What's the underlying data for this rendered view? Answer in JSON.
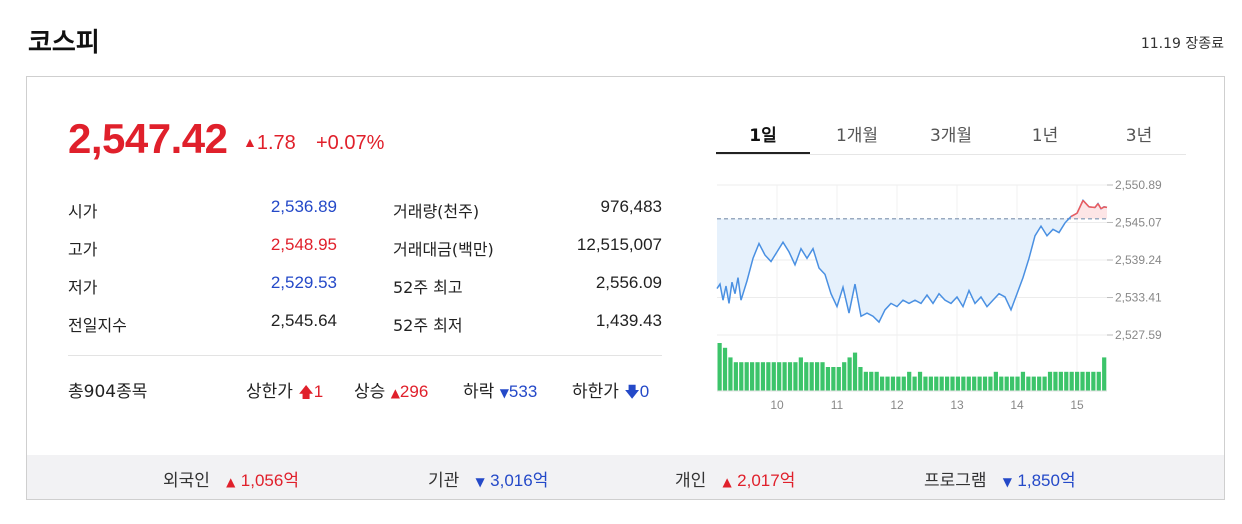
{
  "header": {
    "title": "코스피",
    "status": "11.19 장종료"
  },
  "quote": {
    "price": "2,547.42",
    "change": "1.78",
    "rate": "+0.07%"
  },
  "stats": [
    {
      "label": "시가",
      "value": "2,536.89",
      "tone": "blue"
    },
    {
      "label": "고가",
      "value": "2,548.95",
      "tone": "red"
    },
    {
      "label": "저가",
      "value": "2,529.53",
      "tone": "blue"
    },
    {
      "label": "전일지수",
      "value": "2,545.64",
      "tone": "dark"
    }
  ],
  "stats2": [
    {
      "label": "거래량(천주)",
      "value": "976,483"
    },
    {
      "label": "거래대금(백만)",
      "value": "12,515,007"
    },
    {
      "label": "52주 최고",
      "value": "2,556.09"
    },
    {
      "label": "52주 최저",
      "value": "1,439.43"
    }
  ],
  "breadth": {
    "total_label": "총904종목",
    "upper_label": "상한가",
    "upper_value": "1",
    "up_label": "상승",
    "up_value": "296",
    "down_label": "하락",
    "down_value": "533",
    "lower_label": "하한가",
    "lower_value": "0"
  },
  "tabs": [
    "1일",
    "1개월",
    "3개월",
    "1년",
    "3년"
  ],
  "investors": [
    {
      "label": "외국인",
      "direction": "up",
      "value": "1,056",
      "unit": "억"
    },
    {
      "label": "기관",
      "direction": "down",
      "value": "3,016",
      "unit": "억"
    },
    {
      "label": "개인",
      "direction": "up",
      "value": "2,017",
      "unit": "억"
    },
    {
      "label": "프로그램",
      "direction": "down",
      "value": "1,850",
      "unit": "억"
    }
  ],
  "colors": {
    "up": "#e0202b",
    "down": "#2449c8",
    "line": "#4a90e2",
    "fill": "#e6f1fc",
    "volume": "#3cc46a"
  },
  "chart_data": {
    "type": "line",
    "yticks": [
      "2,550.89",
      "2,545.07",
      "2,539.24",
      "2,533.41",
      "2,527.59"
    ],
    "ylim": [
      2527.59,
      2550.89
    ],
    "xticks": [
      "10",
      "11",
      "12",
      "13",
      "14",
      "15"
    ],
    "xlim": [
      9,
      15.5
    ],
    "prev_close": 2545.64,
    "x": [
      9.0,
      9.05,
      9.1,
      9.15,
      9.2,
      9.25,
      9.3,
      9.35,
      9.4,
      9.5,
      9.6,
      9.7,
      9.8,
      9.9,
      10.0,
      10.1,
      10.2,
      10.3,
      10.4,
      10.5,
      10.6,
      10.7,
      10.8,
      10.9,
      11.0,
      11.1,
      11.2,
      11.3,
      11.4,
      11.5,
      11.6,
      11.7,
      11.8,
      11.9,
      12.0,
      12.1,
      12.2,
      12.3,
      12.4,
      12.5,
      12.6,
      12.7,
      12.8,
      12.9,
      13.0,
      13.1,
      13.2,
      13.3,
      13.4,
      13.5,
      13.6,
      13.7,
      13.8,
      13.9,
      14.0,
      14.1,
      14.2,
      14.3,
      14.4,
      14.5,
      14.6,
      14.7,
      14.8,
      14.9,
      15.0,
      15.1,
      15.2,
      15.3,
      15.35,
      15.4,
      15.45,
      15.5
    ],
    "y": [
      2534.8,
      2535.5,
      2533.0,
      2535.2,
      2532.5,
      2535.8,
      2534.0,
      2536.5,
      2533.0,
      2536.0,
      2539.5,
      2541.8,
      2540.0,
      2539.0,
      2540.5,
      2542.0,
      2540.5,
      2538.5,
      2541.0,
      2539.5,
      2541.0,
      2538.0,
      2537.0,
      2534.0,
      2532.0,
      2535.0,
      2531.0,
      2535.5,
      2530.5,
      2531.0,
      2530.5,
      2529.6,
      2531.5,
      2532.5,
      2532.0,
      2533.0,
      2532.5,
      2533.0,
      2532.5,
      2533.8,
      2532.5,
      2534.0,
      2533.0,
      2532.5,
      2533.5,
      2532.0,
      2534.5,
      2532.5,
      2533.5,
      2532.0,
      2533.0,
      2534.0,
      2533.5,
      2531.5,
      2534.0,
      2536.5,
      2539.5,
      2543.0,
      2544.5,
      2543.0,
      2544.0,
      2543.5,
      2545.0,
      2546.0,
      2546.5,
      2548.5,
      2547.5,
      2547.4,
      2548.0,
      2547.2,
      2547.5,
      2547.42
    ],
    "volume": [
      10,
      9,
      7,
      6,
      6,
      6,
      6,
      6,
      6,
      6,
      6,
      6,
      6,
      6,
      6,
      7,
      6,
      6,
      6,
      6,
      5,
      5,
      5,
      6,
      7,
      8,
      5,
      4,
      4,
      4,
      3,
      3,
      3,
      3,
      3,
      4,
      3,
      4,
      3,
      3,
      3,
      3,
      3,
      3,
      3,
      3,
      3,
      3,
      3,
      3,
      3,
      4,
      3,
      3,
      3,
      3,
      4,
      3,
      3,
      3,
      3,
      4,
      4,
      4,
      4,
      4,
      4,
      4,
      4,
      4,
      4,
      7
    ]
  }
}
